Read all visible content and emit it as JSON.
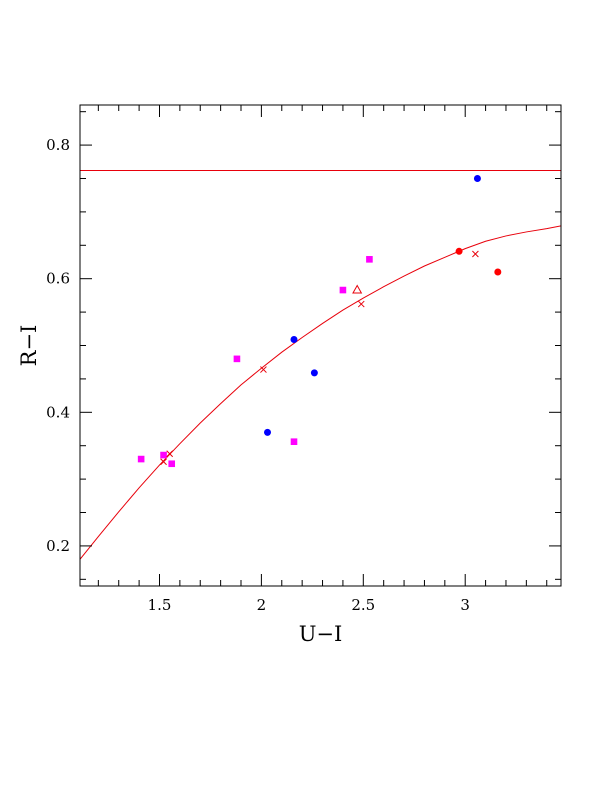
{
  "chart_data": {
    "type": "scatter",
    "title": "",
    "xlabel": "U−I",
    "ylabel": "R−I",
    "xlim": [
      1.11,
      3.47
    ],
    "ylim": [
      0.14,
      0.86
    ],
    "x_ticks": [
      {
        "value": 1.5,
        "label": "1.5"
      },
      {
        "value": 2,
        "label": "2"
      },
      {
        "value": 2.5,
        "label": "2.5"
      },
      {
        "value": 3,
        "label": "3"
      }
    ],
    "y_ticks": [
      {
        "value": 0.2,
        "label": "0.2"
      },
      {
        "value": 0.4,
        "label": "0.4"
      },
      {
        "value": 0.6,
        "label": "0.6"
      },
      {
        "value": 0.8,
        "label": "0.8"
      }
    ],
    "grid": false,
    "hline": {
      "y": 0.762,
      "color": "#e8000b"
    },
    "curve": {
      "color": "#e8000b",
      "points": [
        [
          1.11,
          0.18
        ],
        [
          1.2,
          0.214
        ],
        [
          1.3,
          0.251
        ],
        [
          1.4,
          0.287
        ],
        [
          1.5,
          0.321
        ],
        [
          1.6,
          0.353
        ],
        [
          1.7,
          0.384
        ],
        [
          1.8,
          0.413
        ],
        [
          1.9,
          0.441
        ],
        [
          2.0,
          0.466
        ],
        [
          2.1,
          0.49
        ],
        [
          2.2,
          0.512
        ],
        [
          2.3,
          0.533
        ],
        [
          2.4,
          0.553
        ],
        [
          2.5,
          0.571
        ],
        [
          2.6,
          0.588
        ],
        [
          2.7,
          0.604
        ],
        [
          2.8,
          0.619
        ],
        [
          2.9,
          0.632
        ],
        [
          3.0,
          0.645
        ],
        [
          3.1,
          0.656
        ],
        [
          3.2,
          0.664
        ],
        [
          3.3,
          0.67
        ],
        [
          3.4,
          0.675
        ],
        [
          3.47,
          0.679
        ]
      ]
    },
    "series": [
      {
        "marker": "circle",
        "color": "#0000ff",
        "points": [
          [
            2.03,
            0.37
          ],
          [
            2.16,
            0.509
          ],
          [
            2.26,
            0.459
          ],
          [
            3.06,
            0.75
          ]
        ]
      },
      {
        "marker": "circle",
        "color": "#ff0000",
        "points": [
          [
            2.97,
            0.641
          ],
          [
            3.16,
            0.61
          ]
        ]
      },
      {
        "marker": "square",
        "color": "#ff00ff",
        "points": [
          [
            1.41,
            0.33
          ],
          [
            1.52,
            0.336
          ],
          [
            1.56,
            0.323
          ],
          [
            1.88,
            0.48
          ],
          [
            2.16,
            0.356
          ],
          [
            2.4,
            0.583
          ],
          [
            2.53,
            0.629
          ]
        ]
      },
      {
        "marker": "cross",
        "color": "#e8000b",
        "points": [
          [
            1.52,
            0.326
          ],
          [
            1.55,
            0.338
          ],
          [
            2.01,
            0.464
          ],
          [
            2.49,
            0.562
          ],
          [
            3.05,
            0.637
          ]
        ]
      },
      {
        "marker": "triangle",
        "color": "#e8000b",
        "points": [
          [
            2.47,
            0.583
          ]
        ]
      }
    ]
  }
}
